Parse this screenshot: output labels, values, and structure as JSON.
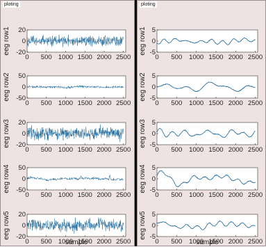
{
  "window": {
    "left_title": "ploting",
    "right_title": "ploting"
  },
  "chart_data": [
    {
      "panel": "left",
      "type": "line",
      "color": "#1f6a9a",
      "xlabel": "sample",
      "xlim": [
        0,
        2560
      ],
      "xticks": [
        0,
        500,
        1000,
        1500,
        2000,
        2500
      ],
      "plots": [
        {
          "ylabel": "eeg row1",
          "ylim": [
            -20,
            20
          ],
          "yticks": [
            -20,
            0,
            20
          ],
          "amplitude": 7,
          "style": "noisy",
          "seed": 11
        },
        {
          "ylabel": "eeg row2",
          "ylim": [
            -50,
            50
          ],
          "yticks": [
            -50,
            0,
            50
          ],
          "amplitude": 5,
          "style": "noisy-flat",
          "seed": 23
        },
        {
          "ylabel": "eeg row3",
          "ylim": [
            -20,
            20
          ],
          "yticks": [
            -20,
            0,
            20
          ],
          "amplitude": 8,
          "style": "noisy",
          "seed": 37
        },
        {
          "ylabel": "eeg row4",
          "ylim": [
            -50,
            50
          ],
          "yticks": [
            -50,
            0,
            50
          ],
          "amplitude": 6,
          "style": "noisy-spikes",
          "seed": 41
        },
        {
          "ylabel": "eeg row5",
          "ylim": [
            -20,
            20
          ],
          "yticks": [
            -20,
            0,
            20
          ],
          "amplitude": 8,
          "style": "noisy",
          "seed": 53
        }
      ]
    },
    {
      "panel": "right",
      "type": "line",
      "color": "#1f6a9a",
      "xlabel": "sample",
      "xlim": [
        0,
        2560
      ],
      "xticks": [
        0,
        500,
        1000,
        1500,
        2000,
        2500
      ],
      "plots": [
        {
          "ylabel": "eeg row1",
          "ylim": [
            -5,
            5
          ],
          "yticks": [
            -5,
            0,
            5
          ],
          "amplitude": 2,
          "style": "smooth",
          "seed": 11
        },
        {
          "ylabel": "eeg row2",
          "ylim": [
            -5,
            5
          ],
          "yticks": [
            -5,
            0,
            5
          ],
          "amplitude": 2,
          "style": "smooth",
          "seed": 23
        },
        {
          "ylabel": "eeg row3",
          "ylim": [
            -5,
            5
          ],
          "yticks": [
            -5,
            0,
            5
          ],
          "amplitude": 2.2,
          "style": "smooth",
          "seed": 37
        },
        {
          "ylabel": "eeg row4",
          "ylim": [
            -5,
            5
          ],
          "yticks": [
            -5,
            0,
            5
          ],
          "amplitude": 2.5,
          "style": "smooth",
          "seed": 41
        },
        {
          "ylabel": "eeg row5",
          "ylim": [
            -5,
            5
          ],
          "yticks": [
            -5,
            0,
            5
          ],
          "amplitude": 2,
          "style": "smooth",
          "seed": 53
        }
      ]
    }
  ]
}
